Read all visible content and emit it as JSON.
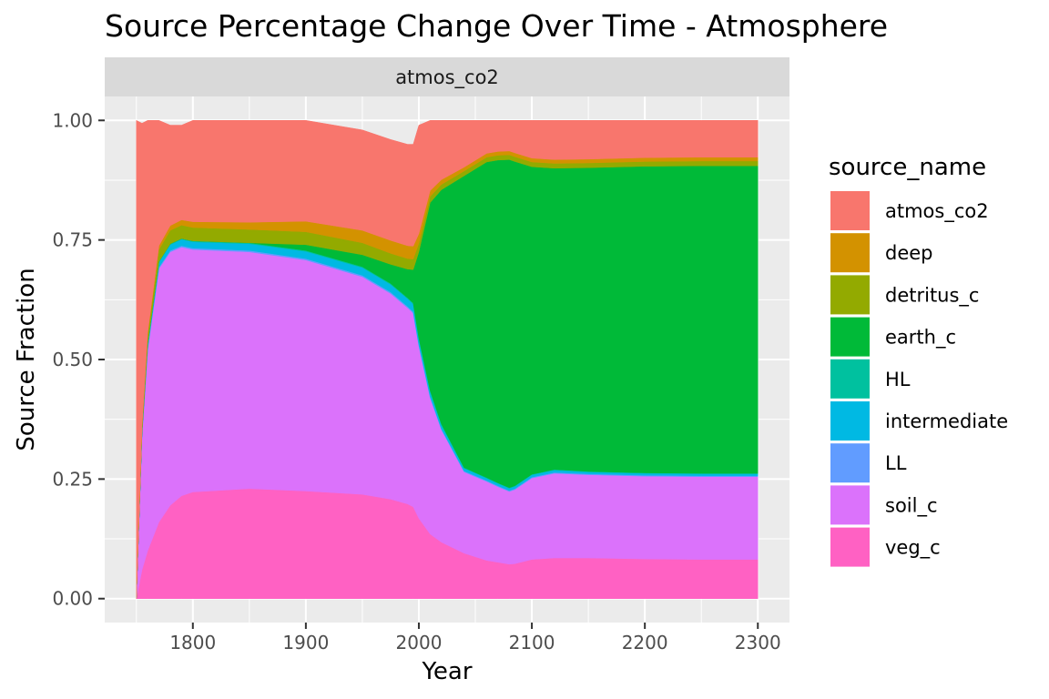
{
  "chart_data": {
    "type": "area",
    "stacked": true,
    "normalized": true,
    "title": "Source Percentage Change Over Time - Atmosphere",
    "facet": "atmos_co2",
    "xlabel": "Year",
    "ylabel": "Source Fraction",
    "xlim": [
      1722,
      2328
    ],
    "ylim": [
      -0.05,
      1.05
    ],
    "x_ticks": [
      1800,
      1900,
      2000,
      2100,
      2200,
      2300
    ],
    "x_tick_labels": [
      "1800",
      "1900",
      "2000",
      "2100",
      "2200",
      "2300"
    ],
    "y_ticks": [
      0,
      0.25,
      0.5,
      0.75,
      1.0
    ],
    "y_tick_labels": [
      "0.00",
      "0.25",
      "0.50",
      "0.75",
      "1.00"
    ],
    "grid": true,
    "legend_title": "source_name",
    "legend_position": "right",
    "x": [
      1750,
      1755,
      1760,
      1770,
      1780,
      1790,
      1800,
      1850,
      1900,
      1950,
      1975,
      1990,
      1995,
      2000,
      2010,
      2020,
      2040,
      2060,
      2070,
      2080,
      2085,
      2100,
      2120,
      2150,
      2200,
      2250,
      2300
    ],
    "stack_order": "first series at the bottom",
    "series": [
      {
        "name": "veg_c",
        "color": "#FF61C3",
        "values": [
          0.0,
          0.06,
          0.1,
          0.16,
          0.195,
          0.215,
          0.223,
          0.23,
          0.225,
          0.218,
          0.208,
          0.198,
          0.192,
          0.168,
          0.135,
          0.118,
          0.095,
          0.08,
          0.076,
          0.072,
          0.073,
          0.082,
          0.085,
          0.085,
          0.083,
          0.082,
          0.082
        ]
      },
      {
        "name": "soil_c",
        "color": "#DB72FB",
        "values": [
          0.0,
          0.28,
          0.42,
          0.53,
          0.53,
          0.52,
          0.507,
          0.495,
          0.483,
          0.455,
          0.43,
          0.41,
          0.405,
          0.36,
          0.285,
          0.235,
          0.17,
          0.165,
          0.158,
          0.152,
          0.155,
          0.17,
          0.177,
          0.174,
          0.173,
          0.173,
          0.173
        ]
      },
      {
        "name": "LL",
        "color": "#619CFF",
        "values": [
          0.0,
          0.002,
          0.003,
          0.003,
          0.003,
          0.003,
          0.003,
          0.003,
          0.003,
          0.003,
          0.003,
          0.003,
          0.003,
          0.003,
          0.003,
          0.002,
          0.002,
          0.002,
          0.002,
          0.002,
          0.002,
          0.002,
          0.002,
          0.002,
          0.002,
          0.002,
          0.002
        ]
      },
      {
        "name": "intermediate",
        "color": "#00B9E3",
        "values": [
          0.0,
          0.005,
          0.008,
          0.01,
          0.012,
          0.013,
          0.013,
          0.014,
          0.015,
          0.016,
          0.016,
          0.016,
          0.016,
          0.012,
          0.01,
          0.008,
          0.006,
          0.005,
          0.005,
          0.005,
          0.005,
          0.005,
          0.005,
          0.004,
          0.004,
          0.004,
          0.004
        ]
      },
      {
        "name": "HL",
        "color": "#00C19F",
        "values": [
          0.0,
          0.001,
          0.002,
          0.002,
          0.002,
          0.002,
          0.002,
          0.002,
          0.002,
          0.002,
          0.002,
          0.002,
          0.002,
          0.002,
          0.002,
          0.002,
          0.001,
          0.001,
          0.001,
          0.001,
          0.001,
          0.001,
          0.001,
          0.001,
          0.001,
          0.001,
          0.001
        ]
      },
      {
        "name": "earth_c",
        "color": "#00BA38",
        "values": [
          0.0,
          0.0,
          0.0,
          0.0,
          0.0,
          0.0,
          0.0,
          0.0,
          0.012,
          0.025,
          0.04,
          0.06,
          0.07,
          0.18,
          0.393,
          0.49,
          0.61,
          0.66,
          0.675,
          0.686,
          0.678,
          0.643,
          0.63,
          0.635,
          0.641,
          0.643,
          0.643
        ]
      },
      {
        "name": "detritus_c",
        "color": "#93AA00",
        "values": [
          0.0,
          0.01,
          0.018,
          0.025,
          0.028,
          0.028,
          0.028,
          0.028,
          0.027,
          0.025,
          0.023,
          0.022,
          0.022,
          0.018,
          0.013,
          0.011,
          0.01,
          0.01,
          0.01,
          0.01,
          0.01,
          0.01,
          0.01,
          0.01,
          0.01,
          0.01,
          0.01
        ]
      },
      {
        "name": "deep",
        "color": "#D39200",
        "values": [
          0.0,
          0.003,
          0.005,
          0.008,
          0.01,
          0.011,
          0.012,
          0.015,
          0.022,
          0.026,
          0.027,
          0.027,
          0.027,
          0.02,
          0.012,
          0.01,
          0.008,
          0.008,
          0.008,
          0.008,
          0.008,
          0.008,
          0.008,
          0.008,
          0.008,
          0.008,
          0.008
        ]
      },
      {
        "name": "atmos_co2",
        "color": "#F8766D",
        "values": [
          1.0,
          0.633,
          0.444,
          0.262,
          0.21,
          0.198,
          0.212,
          0.213,
          0.211,
          0.21,
          0.211,
          0.212,
          0.213,
          0.227,
          0.147,
          0.124,
          0.098,
          0.069,
          0.065,
          0.064,
          0.068,
          0.079,
          0.082,
          0.081,
          0.078,
          0.077,
          0.077
        ]
      }
    ],
    "legend_order": [
      "atmos_co2",
      "deep",
      "detritus_c",
      "earth_c",
      "HL",
      "intermediate",
      "LL",
      "soil_c",
      "veg_c"
    ]
  }
}
